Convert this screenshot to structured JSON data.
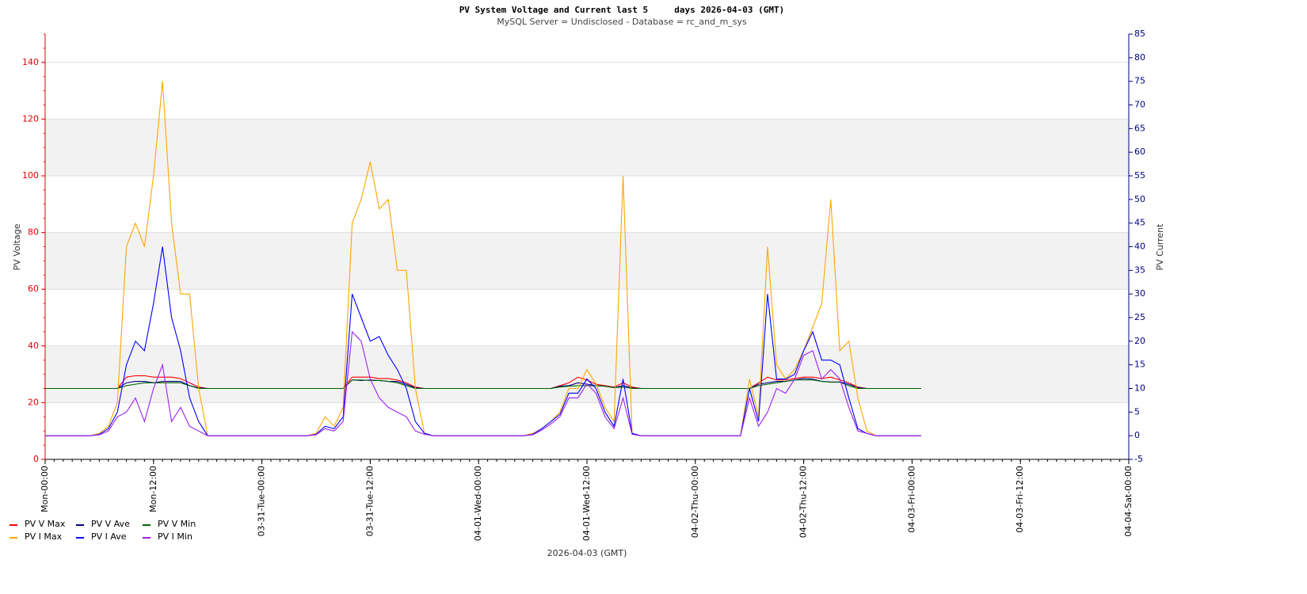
{
  "chart_data": {
    "type": "line",
    "title": "PV System Voltage and Current last 5     days 2026-04-03 (GMT)",
    "subtitle": "MySQL Server = Undisclosed - Database = rc_and_m_sys",
    "x_label": "2026-04-03 (GMT)",
    "y_label": "PV Voltage",
    "y2_label": "PV Current",
    "x": [
      0,
      1,
      2,
      3,
      4,
      5,
      6,
      7,
      8,
      9,
      10,
      11,
      12,
      13,
      14,
      15,
      16,
      17,
      18,
      19,
      20,
      21,
      22,
      23,
      24,
      25,
      26,
      27,
      28,
      29,
      30,
      31,
      32,
      33,
      34,
      35,
      36,
      37,
      38,
      39,
      40,
      41,
      42,
      43,
      44,
      45,
      46,
      47,
      48,
      49,
      50,
      51,
      52,
      53,
      54,
      55,
      56,
      57,
      58,
      59,
      60,
      61,
      62,
      63,
      64,
      65,
      66,
      67,
      68,
      69,
      70,
      71,
      72,
      73,
      74,
      75,
      76,
      77,
      78,
      79,
      80,
      81,
      82,
      83,
      84,
      85,
      86,
      87,
      88,
      89,
      90,
      91,
      92,
      93,
      94,
      95,
      96,
      97
    ],
    "xlim": [
      0,
      120
    ],
    "xticks": [
      {
        "value": 0,
        "label": "Mon-00:00"
      },
      {
        "value": 12,
        "label": "Mon-12:00"
      },
      {
        "value": 24,
        "label": "03-31-Tue-00:00"
      },
      {
        "value": 36,
        "label": "03-31-Tue-12:00"
      },
      {
        "value": 48,
        "label": "04-01-Wed-00:00"
      },
      {
        "value": 60,
        "label": "04-01-Wed-12:00"
      },
      {
        "value": 72,
        "label": "04-02-Thu-00:00"
      },
      {
        "value": 84,
        "label": "04-02-Thu-12:00"
      },
      {
        "value": 96,
        "label": "04-03-Fri-00:00"
      },
      {
        "value": 108,
        "label": "04-03-Fri-12:00"
      },
      {
        "value": 120,
        "label": "04-04-Sat-00:00"
      }
    ],
    "ylim": [
      0,
      150
    ],
    "yticks": [
      0,
      20,
      40,
      60,
      80,
      100,
      120,
      140
    ],
    "y2lim": [
      -5,
      85
    ],
    "y2ticks": [
      -5,
      0,
      5,
      10,
      15,
      20,
      25,
      30,
      35,
      40,
      45,
      50,
      55,
      60,
      65,
      70,
      75,
      80,
      85
    ],
    "grid": true,
    "legend": "bottom-left",
    "series": [
      {
        "name": "PV V Max",
        "color": "#ff0000",
        "values": [
          25,
          25,
          25,
          25,
          25,
          25,
          25,
          25,
          25,
          29,
          29.5,
          29.5,
          29,
          29,
          29,
          28.5,
          27,
          25.5,
          25,
          25,
          25,
          25,
          25,
          25,
          25,
          25,
          25,
          25,
          25,
          25,
          25,
          25,
          25,
          25,
          29,
          29,
          29,
          28.5,
          28.5,
          28,
          27,
          25.5,
          25,
          25,
          25,
          25,
          25,
          25,
          25,
          25,
          25,
          25,
          25,
          25,
          25,
          25,
          25,
          26,
          27,
          29,
          28,
          26.5,
          26,
          25.5,
          27,
          25.5,
          25,
          25,
          25,
          25,
          25,
          25,
          25,
          25,
          25,
          25,
          25,
          25,
          25,
          27,
          29,
          28,
          28,
          28.5,
          29,
          29,
          28.5,
          29,
          28,
          27,
          25.5,
          25,
          25,
          25,
          25,
          25,
          25,
          25
        ]
      },
      {
        "name": "PV V Ave",
        "color": "#00008b",
        "values": [
          25,
          25,
          25,
          25,
          25,
          25,
          25,
          25,
          25,
          27,
          27.5,
          27.5,
          27,
          27.5,
          27.5,
          27.5,
          26,
          25.2,
          25,
          25,
          25,
          25,
          25,
          25,
          25,
          25,
          25,
          25,
          25,
          25,
          25,
          25,
          25,
          25,
          28,
          27.8,
          28,
          27.8,
          27.5,
          27.5,
          26.5,
          25.2,
          25,
          25,
          25,
          25,
          25,
          25,
          25,
          25,
          25,
          25,
          25,
          25,
          25,
          25,
          25,
          25.8,
          26,
          27,
          26.5,
          26,
          25.8,
          25.3,
          26,
          25.2,
          25,
          25,
          25,
          25,
          25,
          25,
          25,
          25,
          25,
          25,
          25,
          25,
          25,
          26.5,
          27,
          27.5,
          27.5,
          28,
          28.5,
          28.3,
          27.5,
          27.3,
          27.3,
          26.5,
          25.3,
          25,
          25,
          25,
          25,
          25,
          25,
          25
        ]
      },
      {
        "name": "PV V Min",
        "color": "#006400",
        "values": [
          25,
          25,
          25,
          25,
          25,
          25,
          25,
          25,
          25,
          26,
          26.5,
          27,
          27,
          27,
          27,
          27,
          26,
          25,
          25,
          25,
          25,
          25,
          25,
          25,
          25,
          25,
          25,
          25,
          25,
          25,
          25,
          25,
          25,
          25,
          28,
          28,
          27.8,
          27.8,
          27.5,
          27,
          26,
          25,
          25,
          25,
          25,
          25,
          25,
          25,
          25,
          25,
          25,
          25,
          25,
          25,
          25,
          25,
          25,
          25.5,
          25.8,
          26,
          26,
          26,
          25.8,
          25.3,
          25.5,
          25,
          25,
          25,
          25,
          25,
          25,
          25,
          25,
          25,
          25,
          25,
          25,
          25,
          25,
          26,
          26.5,
          27,
          27.5,
          28,
          28,
          28,
          27.5,
          27.2,
          27.2,
          26,
          25,
          25,
          25,
          25,
          25,
          25,
          25,
          25
        ]
      },
      {
        "name": "PV I Max",
        "color": "#ffa500",
        "axis": "y2",
        "values": [
          0,
          0,
          0,
          0,
          0,
          0,
          0.5,
          2,
          7,
          40,
          45,
          40,
          55,
          75,
          45,
          30,
          30,
          10,
          0,
          0,
          0,
          0,
          0,
          0,
          0,
          0,
          0,
          0,
          0,
          0,
          0.5,
          4,
          2,
          6,
          45,
          50,
          58,
          48,
          50,
          35,
          35,
          10,
          0.5,
          0,
          0,
          0,
          0,
          0,
          0,
          0,
          0,
          0,
          0,
          0,
          0.5,
          1.5,
          3,
          5,
          10,
          10,
          14,
          11,
          6,
          3,
          55,
          0.5,
          0,
          0,
          0,
          0,
          0,
          0,
          0,
          0,
          0,
          0,
          0,
          0,
          12,
          4,
          40,
          15,
          12,
          14,
          18,
          23,
          28,
          50,
          18,
          20,
          8,
          1,
          0,
          0,
          0,
          0,
          0,
          0
        ]
      },
      {
        "name": "PV I Ave",
        "color": "#0000ff",
        "axis": "y2",
        "values": [
          0,
          0,
          0,
          0,
          0,
          0,
          0.3,
          1.5,
          5,
          15,
          20,
          18,
          28,
          40,
          25,
          18,
          8,
          3,
          0,
          0,
          0,
          0,
          0,
          0,
          0,
          0,
          0,
          0,
          0,
          0,
          0.3,
          2,
          1.5,
          4,
          30,
          25,
          20,
          21,
          17,
          14,
          10,
          3,
          0.5,
          0,
          0,
          0,
          0,
          0,
          0,
          0,
          0,
          0,
          0,
          0,
          0.3,
          1.5,
          3,
          4.5,
          9,
          9,
          12,
          10,
          5,
          2,
          12,
          0.5,
          0,
          0,
          0,
          0,
          0,
          0,
          0,
          0,
          0,
          0,
          0,
          0,
          10,
          3,
          30,
          12,
          12,
          13,
          18,
          22,
          16,
          16,
          15,
          8,
          1.5,
          0.5,
          0,
          0,
          0,
          0,
          0,
          0
        ]
      },
      {
        "name": "PV I Min",
        "color": "#a020f0",
        "axis": "y2",
        "values": [
          0,
          0,
          0,
          0,
          0,
          0,
          0.2,
          1,
          4,
          5,
          8,
          3,
          10,
          15,
          3,
          6,
          2,
          1,
          0,
          0,
          0,
          0,
          0,
          0,
          0,
          0,
          0,
          0,
          0,
          0,
          0.2,
          1.5,
          1,
          3,
          22,
          20,
          12,
          8,
          6,
          5,
          4,
          1,
          0.3,
          0,
          0,
          0,
          0,
          0,
          0,
          0,
          0,
          0,
          0,
          0,
          0.2,
          1.2,
          2.5,
          4,
          8,
          8,
          11,
          9,
          4,
          1.5,
          8,
          0.3,
          0,
          0,
          0,
          0,
          0,
          0,
          0,
          0,
          0,
          0,
          0,
          0,
          8,
          2,
          5,
          10,
          9,
          12,
          17,
          18,
          12,
          14,
          12,
          6,
          1,
          0.5,
          0,
          0,
          0,
          0,
          0,
          0
        ]
      }
    ]
  }
}
